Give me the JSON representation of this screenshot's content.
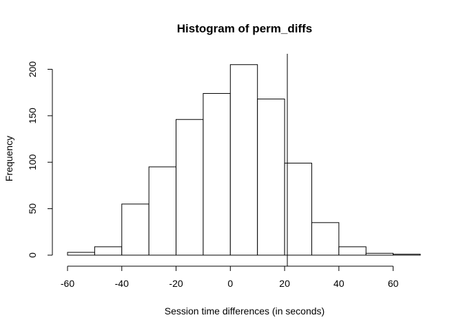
{
  "chart_data": {
    "type": "bar",
    "title": "Histogram of perm_diffs",
    "xlabel": "Session time differences (in seconds)",
    "ylabel": "Frequency",
    "xlim": [
      -60,
      70
    ],
    "ylim": [
      0,
      210
    ],
    "bin_edges": [
      -60,
      -50,
      -40,
      -30,
      -20,
      -10,
      0,
      10,
      20,
      30,
      40,
      50,
      60,
      70
    ],
    "values": [
      3,
      9,
      55,
      95,
      146,
      174,
      205,
      168,
      99,
      35,
      9,
      2,
      1
    ],
    "x_ticks": [
      -60,
      -40,
      -20,
      0,
      20,
      40,
      60
    ],
    "y_ticks": [
      0,
      50,
      100,
      150,
      200
    ],
    "reference_line_x": 21,
    "grid": false
  }
}
